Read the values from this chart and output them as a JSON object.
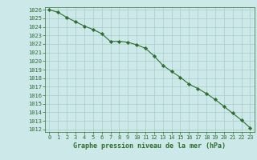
{
  "x": [
    0,
    1,
    2,
    3,
    4,
    5,
    6,
    7,
    8,
    9,
    10,
    11,
    12,
    13,
    14,
    15,
    16,
    17,
    18,
    19,
    20,
    21,
    22,
    23
  ],
  "y": [
    1026.0,
    1025.7,
    1025.1,
    1024.6,
    1024.1,
    1023.7,
    1023.2,
    1022.3,
    1022.3,
    1022.2,
    1021.9,
    1021.5,
    1020.6,
    1019.5,
    1018.8,
    1018.1,
    1017.3,
    1016.8,
    1016.2,
    1015.5,
    1014.7,
    1013.9,
    1013.1,
    1012.2
  ],
  "line_color": "#2d6e2d",
  "marker": "D",
  "marker_size": 2.2,
  "bg_color": "#cce8e8",
  "grid_color": "#aacccc",
  "xlabel": "Graphe pression niveau de la mer (hPa)",
  "xlabel_color": "#2d6e2d",
  "tick_color": "#2d6e2d",
  "ylim": [
    1012,
    1026
  ],
  "xlim": [
    -0.5,
    23.5
  ],
  "yticks": [
    1012,
    1013,
    1014,
    1015,
    1016,
    1017,
    1018,
    1019,
    1020,
    1021,
    1022,
    1023,
    1024,
    1025,
    1026
  ],
  "xticks": [
    0,
    1,
    2,
    3,
    4,
    5,
    6,
    7,
    8,
    9,
    10,
    11,
    12,
    13,
    14,
    15,
    16,
    17,
    18,
    19,
    20,
    21,
    22,
    23
  ],
  "tick_fontsize": 5.0,
  "xlabel_fontsize": 6.0,
  "linewidth": 0.8
}
